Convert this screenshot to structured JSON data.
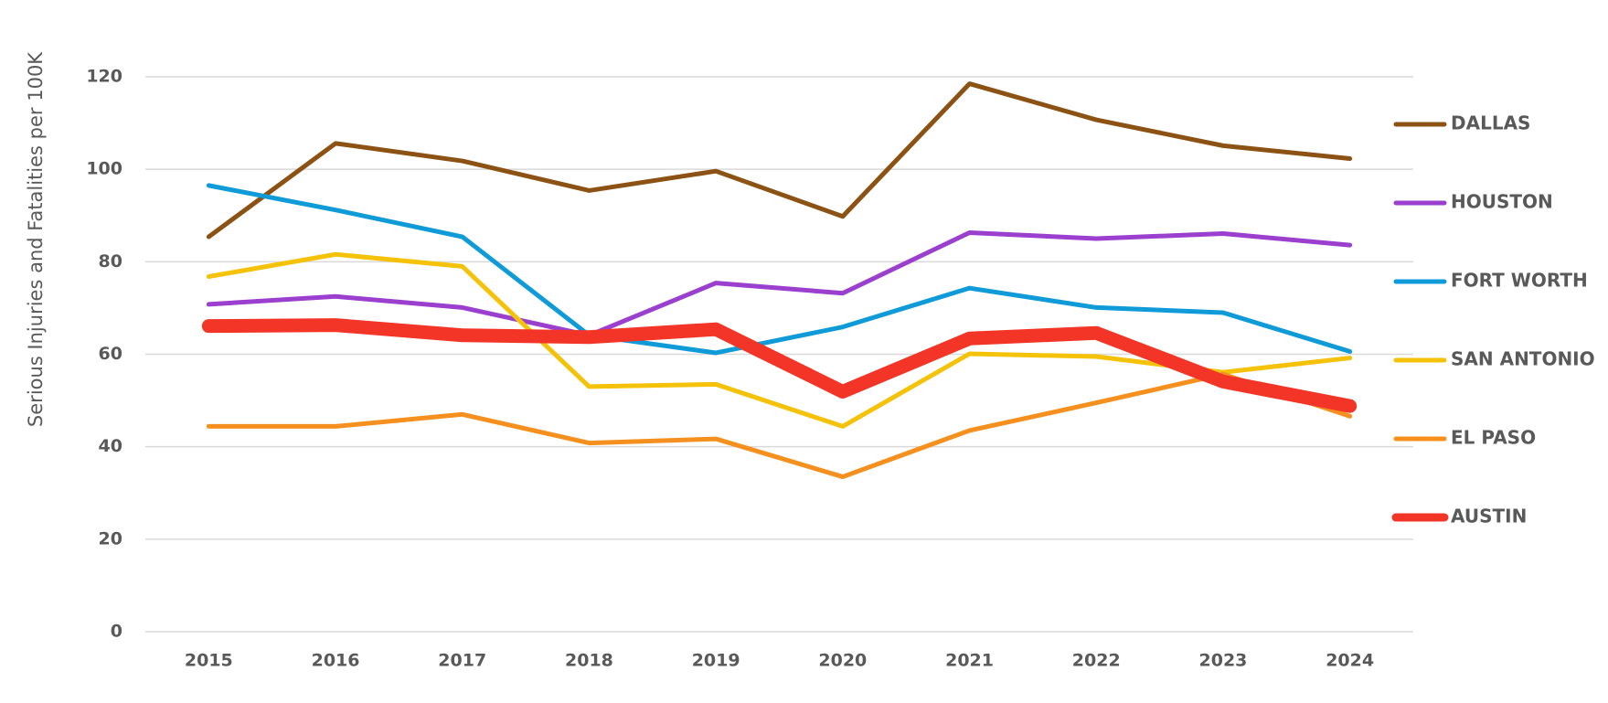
{
  "chart_data": {
    "type": "line",
    "y_label": "Serious Injuries and Fatalities per 100K",
    "categories": [
      "2015",
      "2016",
      "2017",
      "2018",
      "2019",
      "2020",
      "2021",
      "2022",
      "2023",
      "2024"
    ],
    "ylim": [
      0,
      120
    ],
    "yticks": [
      0,
      20,
      40,
      60,
      80,
      100,
      120
    ],
    "grid": true,
    "series": [
      {
        "name": "DALLAS",
        "color": "#8c5214",
        "values": [
          85.4,
          105.6,
          101.8,
          95.4,
          99.6,
          89.8,
          118.5,
          110.7,
          105.1,
          102.3
        ]
      },
      {
        "name": "HOUSTON",
        "color": "#9b3fcf",
        "values": [
          70.8,
          72.5,
          70.1,
          64.1,
          75.4,
          73.2,
          86.3,
          85.0,
          86.1,
          83.6
        ]
      },
      {
        "name": "FORT WORTH",
        "color": "#0f9ad8",
        "values": [
          96.5,
          91.2,
          85.4,
          64.1,
          60.3,
          65.9,
          74.3,
          70.1,
          69.0,
          60.6
        ]
      },
      {
        "name": "SAN ANTONIO",
        "color": "#f5c20a",
        "values": [
          76.8,
          81.6,
          79.0,
          53.0,
          53.5,
          44.4,
          60.1,
          59.5,
          56.1,
          59.2
        ]
      },
      {
        "name": "EL PASO",
        "color": "#f5901e",
        "values": [
          44.4,
          44.4,
          47.0,
          40.8,
          41.7,
          33.5,
          43.5,
          49.5,
          55.7,
          46.6
        ]
      },
      {
        "name": "AUSTIN",
        "color": "#f23526",
        "values": [
          66.1,
          66.3,
          64.1,
          63.7,
          65.4,
          51.9,
          63.4,
          64.6,
          54.1,
          48.8
        ]
      }
    ]
  }
}
